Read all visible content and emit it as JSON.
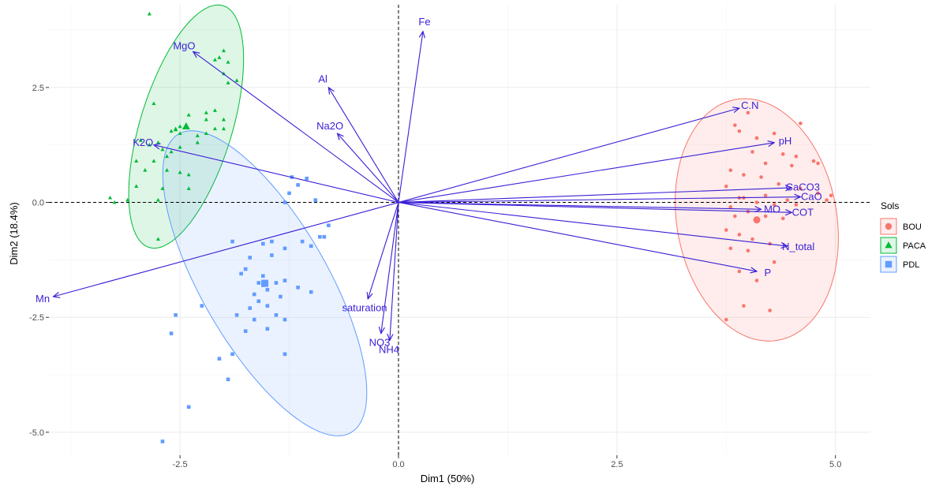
{
  "chart_data": {
    "type": "scatter",
    "subtype": "PCA biplot",
    "title": "",
    "xlabel": "Dim1 (50%)",
    "ylabel": "Dim2 (18.4%)",
    "xlim": [
      -4.0,
      5.4
    ],
    "ylim": [
      -5.5,
      4.3
    ],
    "x_ticks": [
      -2.5,
      0.0,
      2.5,
      5.0
    ],
    "y_ticks": [
      -5.0,
      -2.5,
      0.0,
      2.5
    ],
    "x_tick_labels": [
      "-2.5",
      "0.0",
      "2.5",
      "5.0"
    ],
    "y_tick_labels": [
      "-5.0",
      "-2.5",
      "0.0",
      "2.5"
    ],
    "grid": true,
    "reference_lines": [
      {
        "axis": "x",
        "value": 0,
        "style": "dashed"
      },
      {
        "axis": "y",
        "value": 0,
        "style": "dashed"
      }
    ],
    "legend": {
      "title": "Sols",
      "position": "right"
    },
    "arrow_color": "#3a1fd6",
    "groups": [
      {
        "name": "BOU",
        "color": "#f8766d",
        "shape": "circle",
        "ellipse": {
          "cx": 4.1,
          "cy": -0.38,
          "rx": 1.74,
          "ry": 2.66,
          "angle_deg": 10
        },
        "points": [
          [
            4.0,
            1.95
          ],
          [
            3.85,
            1.68
          ],
          [
            4.6,
            1.72
          ],
          [
            3.9,
            1.55
          ],
          [
            4.1,
            1.4
          ],
          [
            4.3,
            1.5
          ],
          [
            4.05,
            1.1
          ],
          [
            4.4,
            1.05
          ],
          [
            4.55,
            1.0
          ],
          [
            4.5,
            0.8
          ],
          [
            4.75,
            0.9
          ],
          [
            4.8,
            0.85
          ],
          [
            4.2,
            0.85
          ],
          [
            3.95,
            0.6
          ],
          [
            3.8,
            0.7
          ],
          [
            4.15,
            0.55
          ],
          [
            4.35,
            0.4
          ],
          [
            4.6,
            0.3
          ],
          [
            4.8,
            0.2
          ],
          [
            4.95,
            0.15
          ],
          [
            4.9,
            0.05
          ],
          [
            3.75,
            0.35
          ],
          [
            3.9,
            0.1
          ],
          [
            3.95,
            0.1
          ],
          [
            4.1,
            0.0
          ],
          [
            4.2,
            0.15
          ],
          [
            4.3,
            -0.05
          ],
          [
            4.45,
            0.05
          ],
          [
            4.55,
            -0.05
          ],
          [
            3.8,
            -0.1
          ],
          [
            3.85,
            -0.3
          ],
          [
            4.0,
            -0.2
          ],
          [
            4.2,
            -0.3
          ],
          [
            4.4,
            -0.35
          ],
          [
            3.75,
            -0.6
          ],
          [
            3.9,
            -0.7
          ],
          [
            4.05,
            -0.8
          ],
          [
            4.25,
            -0.9
          ],
          [
            3.8,
            -1.0
          ],
          [
            4.0,
            -1.05
          ],
          [
            4.3,
            -1.3
          ],
          [
            3.9,
            -1.5
          ],
          [
            4.1,
            -1.7
          ],
          [
            3.95,
            -2.25
          ],
          [
            4.25,
            -2.35
          ],
          [
            3.75,
            -2.55
          ]
        ]
      },
      {
        "name": "PACA",
        "color": "#00ba38",
        "shape": "triangle",
        "ellipse": {
          "cx": -2.43,
          "cy": 1.65,
          "rx": 1.0,
          "ry": 2.75,
          "angle_deg": -17
        },
        "points": [
          [
            -2.85,
            4.1
          ],
          [
            -2.05,
            3.15
          ],
          [
            -2.0,
            3.3
          ],
          [
            -1.95,
            3.05
          ],
          [
            -2.1,
            3.1
          ],
          [
            -2.0,
            2.8
          ],
          [
            -1.95,
            2.6
          ],
          [
            -1.85,
            2.65
          ],
          [
            -2.8,
            2.15
          ],
          [
            -2.2,
            1.95
          ],
          [
            -2.1,
            2.0
          ],
          [
            -2.0,
            1.8
          ],
          [
            -2.2,
            1.8
          ],
          [
            -2.4,
            1.9
          ],
          [
            -2.55,
            1.6
          ],
          [
            -2.5,
            1.5
          ],
          [
            -2.6,
            1.55
          ],
          [
            -2.5,
            1.65
          ],
          [
            -2.55,
            1.58
          ],
          [
            -2.3,
            1.3
          ],
          [
            -2.1,
            1.6
          ],
          [
            -2.2,
            1.5
          ],
          [
            -2.3,
            1.45
          ],
          [
            -2.0,
            1.6
          ],
          [
            -2.95,
            1.35
          ],
          [
            -2.85,
            1.25
          ],
          [
            -2.75,
            1.3
          ],
          [
            -2.7,
            1.15
          ],
          [
            -2.6,
            1.1
          ],
          [
            -2.5,
            1.2
          ],
          [
            -2.65,
            1.0
          ],
          [
            -2.8,
            0.9
          ],
          [
            -3.0,
            0.9
          ],
          [
            -2.9,
            0.7
          ],
          [
            -2.65,
            0.7
          ],
          [
            -2.5,
            0.65
          ],
          [
            -2.4,
            0.6
          ],
          [
            -3.0,
            0.35
          ],
          [
            -2.7,
            0.3
          ],
          [
            -2.4,
            0.3
          ],
          [
            -3.3,
            0.1
          ],
          [
            -3.1,
            0.05
          ],
          [
            -2.75,
            0.05
          ],
          [
            -3.25,
            0.0
          ],
          [
            -2.75,
            -0.8
          ]
        ]
      },
      {
        "name": "PDL",
        "color": "#619cff",
        "shape": "square",
        "ellipse": {
          "cx": -1.53,
          "cy": -1.76,
          "rx": 1.37,
          "ry": 3.75,
          "angle_deg": 30
        },
        "points": [
          [
            -1.22,
            0.55
          ],
          [
            -1.05,
            0.52
          ],
          [
            -1.15,
            0.38
          ],
          [
            -1.25,
            0.2
          ],
          [
            -1.3,
            0.0
          ],
          [
            -0.95,
            0.05
          ],
          [
            -0.8,
            -0.5
          ],
          [
            -0.9,
            -0.75
          ],
          [
            -0.85,
            -0.75
          ],
          [
            -1.0,
            -0.95
          ],
          [
            -1.1,
            -0.85
          ],
          [
            -1.3,
            -1.0
          ],
          [
            -1.45,
            -0.85
          ],
          [
            -1.55,
            -0.9
          ],
          [
            -1.45,
            -1.15
          ],
          [
            -1.7,
            -1.2
          ],
          [
            -1.9,
            -0.85
          ],
          [
            -1.8,
            -1.55
          ],
          [
            -1.75,
            -1.45
          ],
          [
            -1.55,
            -1.6
          ],
          [
            -1.6,
            -1.75
          ],
          [
            -1.55,
            -1.8
          ],
          [
            -1.5,
            -1.9
          ],
          [
            -1.4,
            -1.75
          ],
          [
            -1.3,
            -1.7
          ],
          [
            -1.35,
            -2.05
          ],
          [
            -1.6,
            -2.15
          ],
          [
            -1.65,
            -2.0
          ],
          [
            -1.15,
            -1.85
          ],
          [
            -1.0,
            -1.95
          ],
          [
            -1.7,
            -2.3
          ],
          [
            -1.5,
            -2.25
          ],
          [
            -1.3,
            -2.55
          ],
          [
            -1.4,
            -2.45
          ],
          [
            -1.5,
            -2.75
          ],
          [
            -1.65,
            -2.55
          ],
          [
            -1.75,
            -2.8
          ],
          [
            -1.85,
            -2.45
          ],
          [
            -2.25,
            -2.25
          ],
          [
            -2.55,
            -2.45
          ],
          [
            -2.6,
            -2.85
          ],
          [
            -1.3,
            -3.3
          ],
          [
            -1.9,
            -3.3
          ],
          [
            -2.05,
            -3.4
          ],
          [
            -1.95,
            -3.85
          ],
          [
            -2.4,
            -4.45
          ],
          [
            -2.7,
            -5.2
          ]
        ]
      }
    ],
    "variables": [
      {
        "name": "Fe",
        "x": 0.28,
        "y": 3.72
      },
      {
        "name": "MgO",
        "x": -2.35,
        "y": 3.28
      },
      {
        "name": "Al",
        "x": -0.8,
        "y": 2.5
      },
      {
        "name": "Na2O",
        "x": -0.7,
        "y": 1.5
      },
      {
        "name": "K2O",
        "x": -2.8,
        "y": 1.25
      },
      {
        "name": "Mn",
        "x": -3.95,
        "y": -2.05
      },
      {
        "name": "saturation",
        "x": -0.35,
        "y": -2.1
      },
      {
        "name": "NO3",
        "x": -0.2,
        "y": -2.85
      },
      {
        "name": "NH4",
        "x": -0.1,
        "y": -3.0
      },
      {
        "name": "C.N",
        "x": 3.9,
        "y": 2.05
      },
      {
        "name": "pH",
        "x": 4.3,
        "y": 1.3
      },
      {
        "name": "CaCO3",
        "x": 4.5,
        "y": 0.32
      },
      {
        "name": "CaO",
        "x": 4.6,
        "y": 0.12
      },
      {
        "name": "COT",
        "x": 4.5,
        "y": -0.22
      },
      {
        "name": "MO",
        "x": 4.15,
        "y": -0.15
      },
      {
        "name": "N_total",
        "x": 4.45,
        "y": -0.95
      },
      {
        "name": "P",
        "x": 4.1,
        "y": -1.5
      }
    ]
  }
}
